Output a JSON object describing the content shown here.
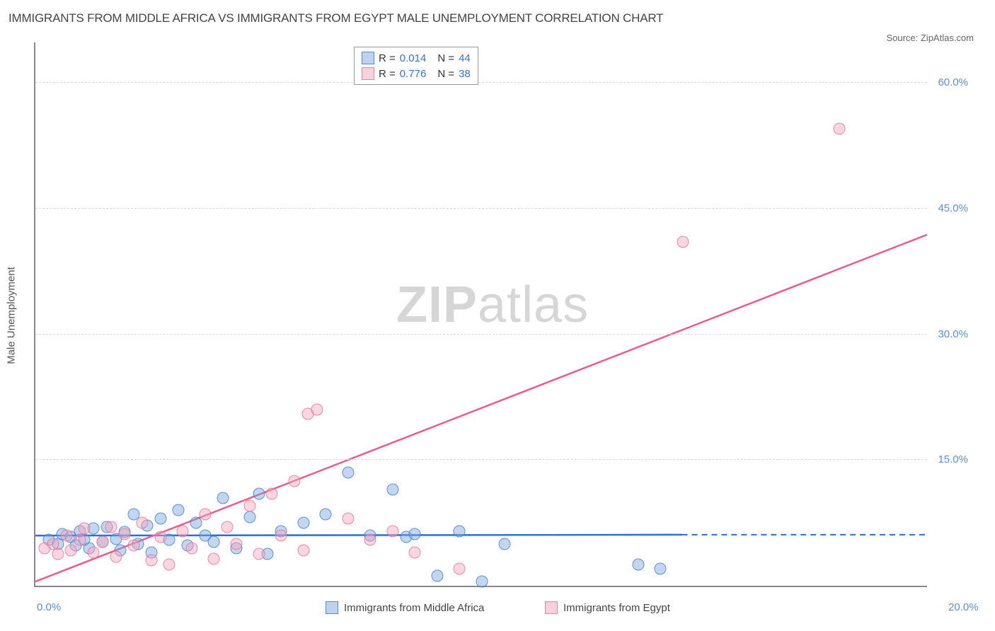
{
  "title": "IMMIGRANTS FROM MIDDLE AFRICA VS IMMIGRANTS FROM EGYPT MALE UNEMPLOYMENT CORRELATION CHART",
  "source_label": "Source: ",
  "source_value": "ZipAtlas.com",
  "yaxis_label": "Male Unemployment",
  "watermark_bold": "ZIP",
  "watermark_rest": "atlas",
  "chart": {
    "type": "scatter",
    "xlim": [
      0,
      20
    ],
    "ylim": [
      0,
      65
    ],
    "y_ticks": [
      15,
      30,
      45,
      60
    ],
    "y_tick_labels": [
      "15.0%",
      "30.0%",
      "45.0%",
      "60.0%"
    ],
    "x_tick_bottom_left": "0.0%",
    "x_tick_bottom_right": "20.0%",
    "background": "#ffffff",
    "grid_color": "#d8d8d8",
    "axis_color": "#888888",
    "series": [
      {
        "key": "blue",
        "name": "Immigrants from Middle Africa",
        "R": "0.014",
        "N": "44",
        "fill": "rgba(121,165,221,0.45)",
        "stroke": "rgba(60,120,200,0.75)",
        "trend": {
          "x1": 0,
          "y1": 6.0,
          "x2": 14.5,
          "y2": 6.1,
          "color": "#2d6fd6",
          "dash_from_x": 14.5
        },
        "points": [
          [
            0.3,
            5.5
          ],
          [
            0.5,
            5.0
          ],
          [
            0.6,
            6.2
          ],
          [
            0.8,
            5.8
          ],
          [
            0.9,
            4.8
          ],
          [
            1.0,
            6.5
          ],
          [
            1.1,
            5.5
          ],
          [
            1.2,
            4.5
          ],
          [
            1.3,
            6.8
          ],
          [
            1.5,
            5.2
          ],
          [
            1.6,
            7.0
          ],
          [
            1.8,
            5.6
          ],
          [
            1.9,
            4.2
          ],
          [
            2.0,
            6.4
          ],
          [
            2.2,
            8.5
          ],
          [
            2.3,
            5.0
          ],
          [
            2.5,
            7.2
          ],
          [
            2.6,
            4.0
          ],
          [
            2.8,
            8.0
          ],
          [
            3.0,
            5.5
          ],
          [
            3.2,
            9.0
          ],
          [
            3.4,
            4.8
          ],
          [
            3.6,
            7.5
          ],
          [
            3.8,
            6.0
          ],
          [
            4.0,
            5.2
          ],
          [
            4.2,
            10.5
          ],
          [
            4.5,
            4.5
          ],
          [
            4.8,
            8.2
          ],
          [
            5.0,
            11.0
          ],
          [
            5.2,
            3.8
          ],
          [
            5.5,
            6.5
          ],
          [
            6.0,
            7.5
          ],
          [
            6.5,
            8.5
          ],
          [
            7.0,
            13.5
          ],
          [
            7.5,
            6.0
          ],
          [
            8.0,
            11.5
          ],
          [
            8.3,
            5.8
          ],
          [
            8.5,
            6.2
          ],
          [
            9.0,
            1.2
          ],
          [
            9.5,
            6.5
          ],
          [
            10.0,
            0.5
          ],
          [
            10.5,
            5.0
          ],
          [
            13.5,
            2.5
          ],
          [
            14.0,
            2.0
          ]
        ]
      },
      {
        "key": "pink",
        "name": "Immigrants from Egypt",
        "R": "0.776",
        "N": "38",
        "fill": "rgba(244,164,187,0.45)",
        "stroke": "rgba(230,110,150,0.75)",
        "trend": {
          "x1": 0,
          "y1": 0.5,
          "x2": 20,
          "y2": 42.0,
          "color": "#e85d8a"
        },
        "points": [
          [
            0.2,
            4.5
          ],
          [
            0.4,
            5.0
          ],
          [
            0.5,
            3.8
          ],
          [
            0.7,
            6.0
          ],
          [
            0.8,
            4.2
          ],
          [
            1.0,
            5.5
          ],
          [
            1.1,
            6.8
          ],
          [
            1.3,
            4.0
          ],
          [
            1.5,
            5.2
          ],
          [
            1.7,
            7.0
          ],
          [
            1.8,
            3.5
          ],
          [
            2.0,
            6.2
          ],
          [
            2.2,
            4.8
          ],
          [
            2.4,
            7.5
          ],
          [
            2.6,
            3.0
          ],
          [
            2.8,
            5.8
          ],
          [
            3.0,
            2.5
          ],
          [
            3.3,
            6.5
          ],
          [
            3.5,
            4.5
          ],
          [
            3.8,
            8.5
          ],
          [
            4.0,
            3.2
          ],
          [
            4.3,
            7.0
          ],
          [
            4.5,
            5.0
          ],
          [
            4.8,
            9.5
          ],
          [
            5.0,
            3.8
          ],
          [
            5.3,
            11.0
          ],
          [
            5.5,
            6.0
          ],
          [
            5.8,
            12.5
          ],
          [
            6.0,
            4.2
          ],
          [
            6.1,
            20.5
          ],
          [
            6.3,
            21.0
          ],
          [
            7.0,
            8.0
          ],
          [
            7.5,
            5.5
          ],
          [
            8.0,
            6.5
          ],
          [
            8.5,
            4.0
          ],
          [
            9.5,
            2.0
          ],
          [
            14.5,
            41.0
          ],
          [
            18.0,
            54.5
          ]
        ]
      }
    ]
  },
  "legend_top": {
    "rows": [
      {
        "swatch": "blue",
        "r_label": "R =",
        "r_value": "0.014",
        "n_label": "N =",
        "n_value": "44"
      },
      {
        "swatch": "pink",
        "r_label": "R =",
        "r_value": "0.776",
        "n_label": "N =",
        "n_value": "38"
      }
    ]
  },
  "legend_bottom": {
    "items": [
      {
        "swatch": "blue",
        "label": "Immigrants from Middle Africa"
      },
      {
        "swatch": "pink",
        "label": "Immigrants from Egypt"
      }
    ]
  }
}
